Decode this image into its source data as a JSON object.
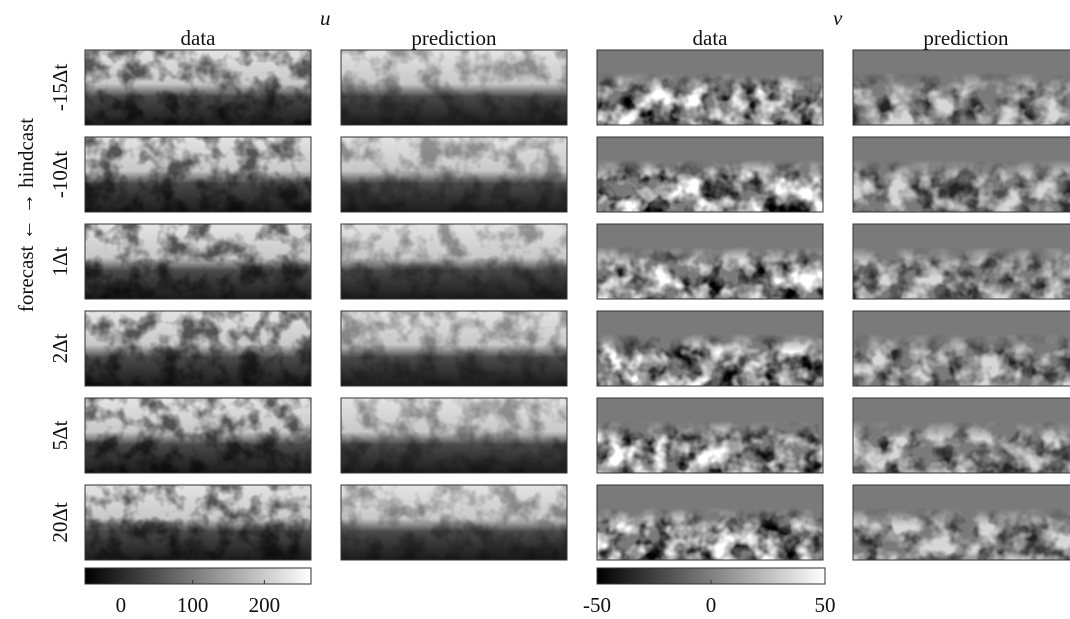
{
  "variables": [
    "u",
    "v"
  ],
  "columns": [
    "data",
    "prediction",
    "data",
    "prediction"
  ],
  "rows": [
    "-15Δt",
    "-10Δt",
    "1Δt",
    "2Δt",
    "5Δt",
    "20Δt"
  ],
  "side_label": "forecast ← → hindcast",
  "colorbars": [
    {
      "lim": [
        -50,
        265
      ],
      "ticks": [
        0,
        100,
        200
      ]
    },
    {
      "lim": [
        -50,
        50
      ],
      "ticks": [
        -50,
        0,
        50
      ]
    }
  ]
}
